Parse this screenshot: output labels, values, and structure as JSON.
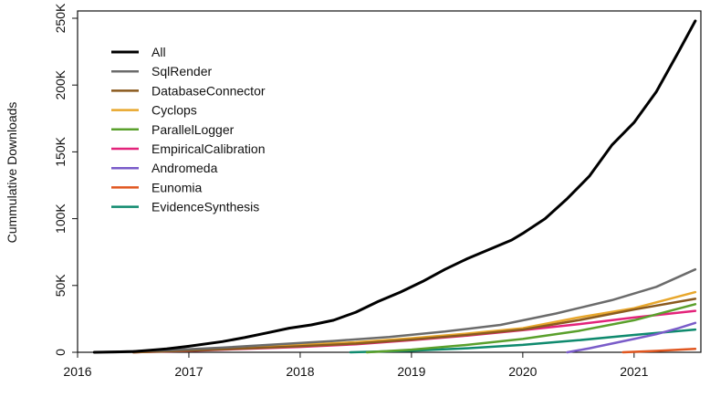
{
  "chart_data": {
    "type": "line",
    "title": "",
    "xlabel": "",
    "ylabel": "Cummulative Downloads",
    "xlim": [
      2016.0,
      2021.6
    ],
    "ylim": [
      0,
      250000
    ],
    "x_ticks": [
      2016,
      2017,
      2018,
      2019,
      2020,
      2021
    ],
    "x_tick_labels": [
      "2016",
      "2017",
      "2018",
      "2019",
      "2020",
      "2021"
    ],
    "y_ticks": [
      0,
      50000,
      100000,
      150000,
      200000,
      250000
    ],
    "y_tick_labels": [
      "0",
      "50K",
      "100K",
      "150K",
      "200K",
      "250K"
    ],
    "grid": false,
    "legend_position": "top-left",
    "series": [
      {
        "name": "All",
        "color": "#000000",
        "width": 3,
        "x": [
          2016.15,
          2016.5,
          2016.8,
          2017.0,
          2017.3,
          2017.5,
          2017.7,
          2017.9,
          2018.1,
          2018.3,
          2018.5,
          2018.7,
          2018.9,
          2019.1,
          2019.3,
          2019.5,
          2019.7,
          2019.9,
          2020.0,
          2020.2,
          2020.4,
          2020.6,
          2020.8,
          2021.0,
          2021.2,
          2021.4,
          2021.55
        ],
        "y": [
          0,
          500,
          2500,
          4500,
          8000,
          11000,
          14500,
          18000,
          20500,
          24000,
          30000,
          38000,
          45000,
          53000,
          62000,
          70000,
          77000,
          84000,
          89000,
          100000,
          115000,
          132000,
          155000,
          172000,
          195000,
          225000,
          248000
        ]
      },
      {
        "name": "SqlRender",
        "color": "#6b6b6b",
        "width": 2.5,
        "x": [
          2016.15,
          2016.8,
          2017.3,
          2017.8,
          2018.3,
          2018.8,
          2019.3,
          2019.8,
          2020.3,
          2020.8,
          2021.2,
          2021.55
        ],
        "y": [
          0,
          1500,
          3500,
          6000,
          8500,
          11500,
          15500,
          20500,
          29000,
          39000,
          49000,
          62000
        ]
      },
      {
        "name": "DatabaseConnector",
        "color": "#8a5a1e",
        "width": 2.5,
        "x": [
          2016.5,
          2017.0,
          2017.5,
          2018.0,
          2018.5,
          2019.0,
          2019.5,
          2020.0,
          2020.5,
          2021.0,
          2021.55
        ],
        "y": [
          0,
          1200,
          2800,
          4500,
          6500,
          9500,
          13000,
          17000,
          24000,
          32000,
          40000
        ]
      },
      {
        "name": "Cyclops",
        "color": "#e8a72c",
        "width": 2.5,
        "x": [
          2016.5,
          2017.0,
          2017.5,
          2018.0,
          2018.5,
          2019.0,
          2019.5,
          2020.0,
          2020.5,
          2021.0,
          2021.55
        ],
        "y": [
          0,
          1500,
          3500,
          5500,
          7500,
          10500,
          14000,
          18000,
          26000,
          33000,
          45000
        ]
      },
      {
        "name": "ParallelLogger",
        "color": "#5aa02c",
        "width": 2.5,
        "x": [
          2018.6,
          2019.0,
          2019.5,
          2020.0,
          2020.5,
          2021.0,
          2021.55
        ],
        "y": [
          0,
          2000,
          5500,
          10000,
          16000,
          24000,
          36000
        ]
      },
      {
        "name": "EmpiricalCalibration",
        "color": "#e3237a",
        "width": 2.5,
        "x": [
          2016.5,
          2017.0,
          2017.5,
          2018.0,
          2018.5,
          2019.0,
          2019.5,
          2020.0,
          2020.5,
          2021.0,
          2021.55
        ],
        "y": [
          0,
          1000,
          2500,
          4000,
          6000,
          9000,
          12500,
          16500,
          21000,
          26000,
          31000
        ]
      },
      {
        "name": "Andromeda",
        "color": "#7a5cc9",
        "width": 2.5,
        "x": [
          2020.4,
          2020.6,
          2020.8,
          2021.0,
          2021.2,
          2021.4,
          2021.55
        ],
        "y": [
          0,
          3000,
          6500,
          10000,
          13500,
          18000,
          22000
        ]
      },
      {
        "name": "Eunomia",
        "color": "#e0561f",
        "width": 2.5,
        "x": [
          2020.9,
          2021.2,
          2021.55
        ],
        "y": [
          0,
          1000,
          2500
        ]
      },
      {
        "name": "EvidenceSynthesis",
        "color": "#0f8a6e",
        "width": 2.5,
        "x": [
          2018.45,
          2019.0,
          2019.5,
          2020.0,
          2020.5,
          2021.0,
          2021.55
        ],
        "y": [
          0,
          1200,
          3000,
          5500,
          9000,
          13000,
          17000
        ]
      }
    ]
  }
}
